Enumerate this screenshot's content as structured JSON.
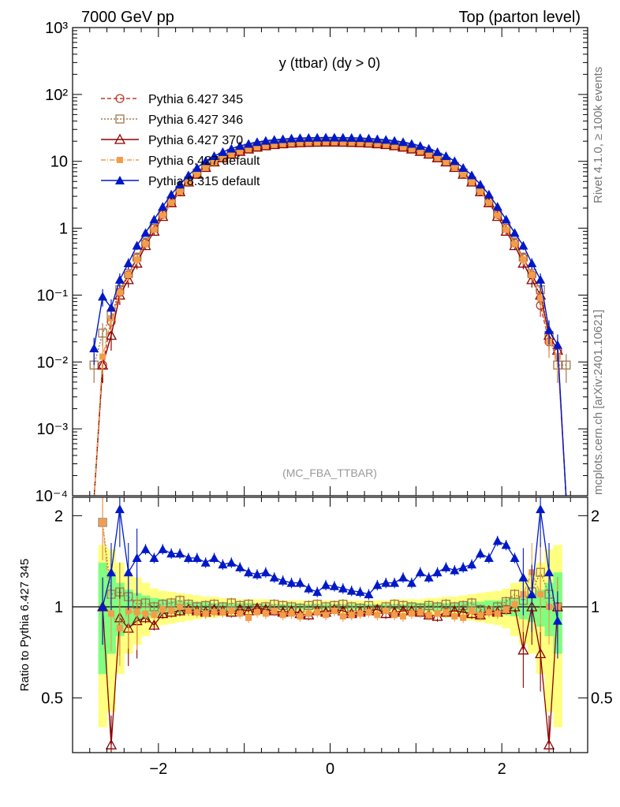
{
  "header": {
    "left": "7000 GeV pp",
    "right": "Top (parton level)"
  },
  "side_labels": {
    "rivet": "Rivet 4.1.0, ≥ 100k events",
    "mcplots": "mcplots.cern.ch [arXiv:2401.10621]"
  },
  "chart_data": [
    {
      "type": "line",
      "panel": "main",
      "title": "y (ttbar) (dy > 0)",
      "watermark": "(MC_FBA_TTBAR)",
      "yscale": "log",
      "ylim": [
        0.0001,
        1000
      ],
      "xlim": [
        -3.0,
        3.0
      ],
      "y_tick_labels": [
        "10⁻⁴",
        "10⁻³",
        "10⁻²",
        "10⁻¹",
        "1",
        "10",
        "10²",
        "10³"
      ],
      "y_tick_values": [
        0.0001,
        0.001,
        0.01,
        0.1,
        1,
        10,
        100,
        1000
      ],
      "legend_position": "top-left",
      "x": [
        -2.75,
        -2.65,
        -2.55,
        -2.45,
        -2.35,
        -2.25,
        -2.15,
        -2.05,
        -1.95,
        -1.85,
        -1.75,
        -1.65,
        -1.55,
        -1.45,
        -1.35,
        -1.25,
        -1.15,
        -1.05,
        -0.95,
        -0.85,
        -0.75,
        -0.65,
        -0.55,
        -0.45,
        -0.35,
        -0.25,
        -0.15,
        -0.05,
        0.05,
        0.15,
        0.25,
        0.35,
        0.45,
        0.55,
        0.65,
        0.75,
        0.85,
        0.95,
        1.05,
        1.15,
        1.25,
        1.35,
        1.45,
        1.55,
        1.65,
        1.75,
        1.85,
        1.95,
        2.05,
        2.15,
        2.25,
        2.35,
        2.45,
        2.55,
        2.65,
        2.75
      ],
      "series": [
        {
          "name": "Pythia 6.427 345",
          "color": "#c0392b",
          "marker": "circle-open",
          "dash": "5,3",
          "values": [
            1e-05,
            0.009,
            0.04,
            0.11,
            0.2,
            0.36,
            0.6,
            1.0,
            1.6,
            2.5,
            3.6,
            5.0,
            6.6,
            8.3,
            10.0,
            11.5,
            13.0,
            14.3,
            15.5,
            16.5,
            17.3,
            18.0,
            18.5,
            18.9,
            19.2,
            19.4,
            19.5,
            19.6,
            19.6,
            19.5,
            19.4,
            19.2,
            18.9,
            18.5,
            18.0,
            17.3,
            16.5,
            15.5,
            14.3,
            13.0,
            11.5,
            10.0,
            8.3,
            6.6,
            5.0,
            3.6,
            2.5,
            1.6,
            1.0,
            0.6,
            0.36,
            0.2,
            0.07,
            0.02,
            0.015,
            1e-05
          ]
        },
        {
          "name": "Pythia 6.427 346",
          "color": "#a0784a",
          "marker": "square-open",
          "dash": "2,2",
          "values": [
            0.009,
            0.027,
            0.05,
            0.12,
            0.21,
            0.37,
            0.62,
            1.0,
            1.65,
            2.55,
            3.7,
            5.1,
            6.7,
            8.4,
            10.1,
            11.6,
            13.2,
            14.5,
            15.7,
            16.7,
            17.5,
            18.2,
            18.7,
            19.1,
            19.4,
            19.6,
            19.7,
            19.8,
            19.8,
            19.7,
            19.6,
            19.4,
            19.1,
            18.7,
            18.2,
            17.5,
            16.7,
            15.7,
            14.5,
            13.2,
            11.6,
            10.1,
            8.4,
            6.7,
            5.1,
            3.7,
            2.55,
            1.65,
            1.0,
            0.62,
            0.37,
            0.21,
            0.12,
            0.025,
            0.009,
            0.009
          ]
        },
        {
          "name": "Pythia 6.427 370",
          "color": "#8b0000",
          "marker": "triangle-open",
          "dash": "",
          "values": [
            1e-05,
            0.009,
            0.025,
            0.1,
            0.17,
            0.3,
            0.55,
            0.9,
            1.5,
            2.4,
            3.5,
            4.9,
            6.4,
            8.1,
            9.8,
            11.3,
            12.8,
            14.1,
            15.3,
            16.3,
            17.1,
            17.8,
            18.3,
            18.7,
            19.0,
            19.2,
            19.3,
            19.4,
            19.4,
            19.3,
            19.2,
            19.0,
            18.7,
            18.3,
            17.8,
            17.1,
            16.3,
            15.3,
            14.1,
            12.8,
            11.3,
            9.8,
            8.1,
            6.4,
            4.9,
            3.5,
            2.4,
            1.5,
            0.9,
            0.55,
            0.3,
            0.17,
            0.1,
            0.025,
            0.015,
            1e-05
          ]
        },
        {
          "name": "Pythia 6.427 default",
          "color": "#f39c4a",
          "marker": "square-filled",
          "dash": "6,2,1,2",
          "values": [
            1e-05,
            0.012,
            0.045,
            0.11,
            0.2,
            0.34,
            0.58,
            0.95,
            1.55,
            2.4,
            3.5,
            4.85,
            6.4,
            8.0,
            9.7,
            11.2,
            12.7,
            14.0,
            15.2,
            16.2,
            17.0,
            17.7,
            18.2,
            18.6,
            18.9,
            19.1,
            19.2,
            19.3,
            19.3,
            19.2,
            19.1,
            18.9,
            18.6,
            18.2,
            17.7,
            17.0,
            16.2,
            15.2,
            14.0,
            12.7,
            11.2,
            9.7,
            8.0,
            6.4,
            4.85,
            3.5,
            2.4,
            1.55,
            0.95,
            0.58,
            0.34,
            0.2,
            0.09,
            0.02,
            0.012,
            1e-05
          ]
        },
        {
          "name": "Pythia 8.315 default",
          "color": "#0018c8",
          "marker": "triangle-filled",
          "dash": "",
          "values": [
            0.016,
            0.095,
            0.065,
            0.17,
            0.3,
            0.55,
            0.85,
            1.35,
            2.1,
            3.2,
            4.5,
            6.2,
            8.0,
            10.1,
            12.0,
            13.8,
            15.5,
            17.0,
            18.3,
            19.4,
            20.3,
            21.0,
            21.5,
            22.0,
            22.3,
            22.5,
            22.6,
            22.7,
            22.7,
            22.6,
            22.5,
            22.3,
            22.0,
            21.5,
            21.0,
            20.3,
            19.4,
            18.3,
            17.0,
            15.5,
            13.8,
            12.0,
            10.1,
            8.0,
            6.2,
            4.5,
            3.2,
            2.1,
            1.35,
            0.85,
            0.55,
            0.3,
            0.17,
            0.03,
            0.018,
            1e-05
          ]
        }
      ]
    },
    {
      "type": "line",
      "panel": "ratio",
      "ylabel": "Ratio to Pythia 6.427 345",
      "ylim": [
        0.33,
        2.3
      ],
      "xlim": [
        -3.0,
        3.0
      ],
      "x_tick_labels": [
        "−2",
        "0",
        "2"
      ],
      "x_tick_values": [
        -2,
        0,
        2
      ],
      "y_tick_labels": [
        "0.5",
        "1",
        "2"
      ],
      "y_tick_values": [
        0.5,
        1,
        2
      ],
      "x": [
        -2.65,
        -2.55,
        -2.45,
        -2.35,
        -2.25,
        -2.15,
        -2.05,
        -1.95,
        -1.85,
        -1.75,
        -1.65,
        -1.55,
        -1.45,
        -1.35,
        -1.25,
        -1.15,
        -1.05,
        -0.95,
        -0.85,
        -0.75,
        -0.65,
        -0.55,
        -0.45,
        -0.35,
        -0.25,
        -0.15,
        -0.05,
        0.05,
        0.15,
        0.25,
        0.35,
        0.45,
        0.55,
        0.65,
        0.75,
        0.85,
        0.95,
        1.05,
        1.15,
        1.25,
        1.35,
        1.45,
        1.55,
        1.65,
        1.75,
        1.85,
        1.95,
        2.05,
        2.15,
        2.25,
        2.35,
        2.45,
        2.55,
        2.65
      ],
      "band_outer": [
        0.4,
        0.45,
        0.6,
        0.7,
        0.75,
        0.8,
        0.85,
        0.87,
        0.88,
        0.89,
        0.9,
        0.91,
        0.92,
        0.92,
        0.93,
        0.93,
        0.94,
        0.94,
        0.94,
        0.94,
        0.95,
        0.95,
        0.95,
        0.95,
        0.95,
        0.95,
        0.95,
        0.95,
        0.95,
        0.95,
        0.95,
        0.95,
        0.95,
        0.95,
        0.94,
        0.94,
        0.94,
        0.94,
        0.93,
        0.93,
        0.92,
        0.92,
        0.91,
        0.9,
        0.89,
        0.88,
        0.87,
        0.85,
        0.8,
        0.75,
        0.7,
        0.6,
        0.45,
        0.4
      ],
      "band_inner": [
        0.6,
        0.7,
        0.8,
        0.86,
        0.89,
        0.91,
        0.93,
        0.94,
        0.95,
        0.95,
        0.96,
        0.96,
        0.96,
        0.97,
        0.97,
        0.97,
        0.97,
        0.97,
        0.98,
        0.98,
        0.98,
        0.98,
        0.98,
        0.98,
        0.98,
        0.98,
        0.98,
        0.98,
        0.98,
        0.98,
        0.98,
        0.98,
        0.98,
        0.98,
        0.98,
        0.98,
        0.97,
        0.97,
        0.97,
        0.97,
        0.97,
        0.97,
        0.96,
        0.96,
        0.96,
        0.95,
        0.95,
        0.94,
        0.93,
        0.91,
        0.89,
        0.86,
        0.8,
        0.7
      ],
      "series": [
        {
          "name": "Pythia 6.427 346",
          "color": "#a0784a",
          "marker": "square-open",
          "dash": "2,2",
          "values": [
            1.9,
            1.1,
            1.12,
            1.08,
            1.02,
            1.03,
            1.0,
            1.02,
            1.03,
            1.05,
            1.02,
            1.0,
            1.01,
            1.02,
            1.0,
            1.03,
            1.01,
            1.02,
            0.99,
            1.0,
            1.02,
            1.01,
            1.0,
            0.99,
            1.01,
            1.02,
            1.0,
            1.01,
            1.02,
            1.0,
            0.99,
            1.01,
            0.98,
            1.0,
            1.02,
            1.01,
            1.0,
            0.99,
            1.01,
            1.0,
            1.02,
            1.0,
            1.01,
            1.03,
            0.98,
            0.97,
            1.0,
            1.04,
            1.1,
            1.05,
            1.12,
            1.3,
            1.1,
            1.0
          ]
        },
        {
          "name": "Pythia 6.427 370",
          "color": "#8b0000",
          "marker": "triangle-open",
          "dash": "",
          "values": [
            1.0,
            0.35,
            0.92,
            0.85,
            0.9,
            0.92,
            0.87,
            0.95,
            0.96,
            0.97,
            0.98,
            0.97,
            0.96,
            0.98,
            0.97,
            0.96,
            0.98,
            0.97,
            0.99,
            0.98,
            0.97,
            0.96,
            0.97,
            0.95,
            0.94,
            0.97,
            0.96,
            0.98,
            0.97,
            0.95,
            0.96,
            0.97,
            0.98,
            0.95,
            0.96,
            0.97,
            0.97,
            0.96,
            0.94,
            0.93,
            0.96,
            0.97,
            0.96,
            0.95,
            0.94,
            0.97,
            0.96,
            0.98,
            1.0,
            0.72,
            1.0,
            0.7,
            0.35,
            1.0
          ]
        },
        {
          "name": "Pythia 6.427 default",
          "color": "#f39c4a",
          "marker": "square-filled",
          "dash": "6,2,1,2",
          "values": [
            1.9,
            0.95,
            0.85,
            0.97,
            0.96,
            0.95,
            0.94,
            0.98,
            0.97,
            1.0,
            0.97,
            0.96,
            0.95,
            0.96,
            0.96,
            0.97,
            0.95,
            0.92,
            0.96,
            0.95,
            0.97,
            0.94,
            0.95,
            0.93,
            0.95,
            0.96,
            0.94,
            0.97,
            0.93,
            0.94,
            0.95,
            0.96,
            0.94,
            0.97,
            0.94,
            0.93,
            0.95,
            0.96,
            0.94,
            0.95,
            0.96,
            0.93,
            0.92,
            0.97,
            0.94,
            0.96,
            0.95,
            0.98,
            1.02,
            1.1,
            1.3,
            1.1,
            1.0,
            1.0
          ]
        },
        {
          "name": "Pythia 8.315 default",
          "color": "#0018c8",
          "marker": "triangle-filled",
          "dash": "",
          "values": [
            1.0,
            1.3,
            2.1,
            1.3,
            1.45,
            1.55,
            1.45,
            1.55,
            1.5,
            1.5,
            1.45,
            1.45,
            1.4,
            1.45,
            1.38,
            1.4,
            1.35,
            1.3,
            1.28,
            1.3,
            1.25,
            1.22,
            1.2,
            1.2,
            1.15,
            1.12,
            1.18,
            1.17,
            1.15,
            1.13,
            1.12,
            1.1,
            1.18,
            1.2,
            1.2,
            1.25,
            1.2,
            1.3,
            1.25,
            1.3,
            1.35,
            1.32,
            1.35,
            1.38,
            1.5,
            1.45,
            1.65,
            1.6,
            1.45,
            1.25,
            1.1,
            2.1,
            1.3,
            0.9
          ]
        }
      ]
    }
  ]
}
